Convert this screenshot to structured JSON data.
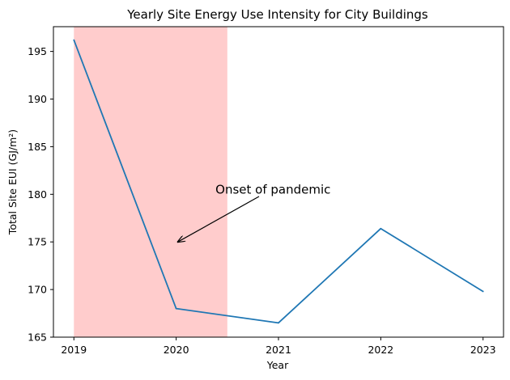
{
  "chart_data": {
    "type": "line",
    "title": "Yearly Site Energy Use Intensity for City Buildings",
    "xlabel": "Year",
    "ylabel": "Total Site EUI (GJ/m²)",
    "x": [
      2019,
      2020,
      2021,
      2022,
      2023
    ],
    "series": [
      {
        "values": [
          196.2,
          168.0,
          166.5,
          176.4,
          169.8
        ],
        "color": "#1f77b4"
      }
    ],
    "xlim": [
      2018.8,
      2023.2
    ],
    "ylim": [
      165,
      197.6
    ],
    "xticks": [
      "2019",
      "2020",
      "2021",
      "2022",
      "2023"
    ],
    "yticks": [
      "165",
      "170",
      "175",
      "180",
      "185",
      "190",
      "195"
    ],
    "shaded_region": {
      "x_start": 2019.0,
      "x_end": 2020.5,
      "color": "#ffcccc"
    },
    "annotation": {
      "text": "Onset of pandemic",
      "point": [
        2020.0,
        175.0
      ],
      "text_at": [
        2020.4,
        180.5
      ]
    },
    "grid": false,
    "legend": "none"
  }
}
